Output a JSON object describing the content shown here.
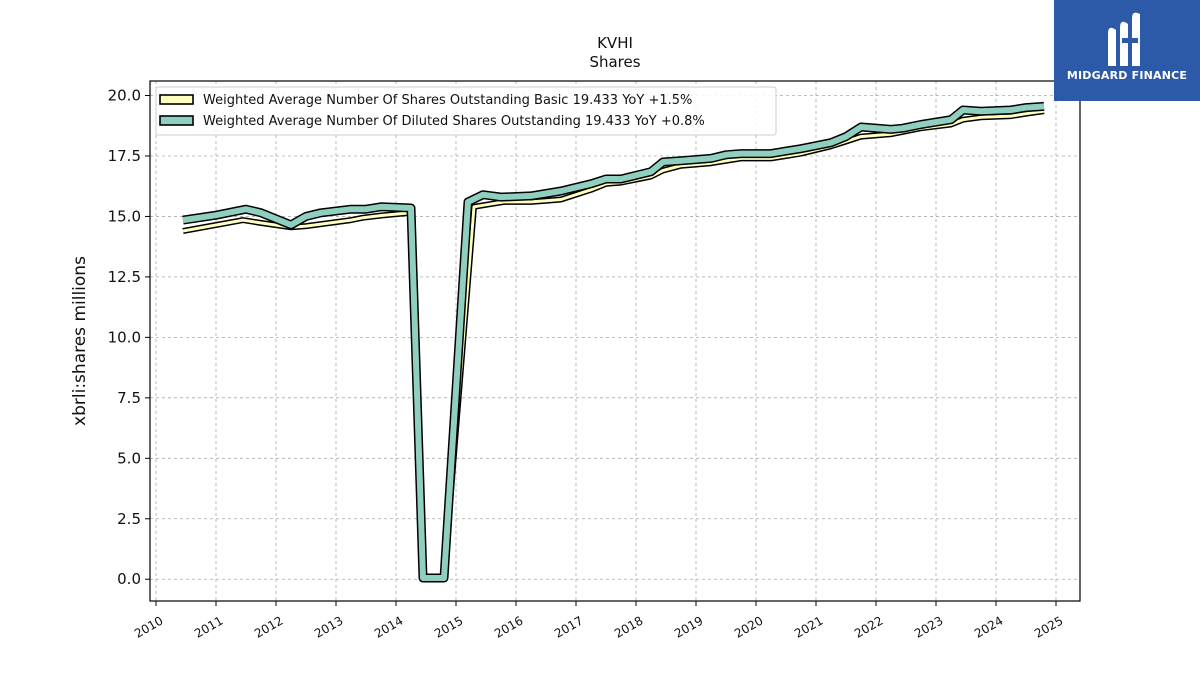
{
  "logo": {
    "name": "MIDGARD FINANCE",
    "icon": "midgard-monogram-icon",
    "bg_color": "#2c5aa8"
  },
  "chart_data": {
    "type": "line",
    "title": "KVHI",
    "subtitle": "Shares",
    "xlabel": "",
    "ylabel": "xbrli:shares millions",
    "xlim": [
      2009.9,
      2025.4
    ],
    "ylim": [
      -0.9,
      20.6
    ],
    "x_ticks": [
      "2010",
      "2011",
      "2012",
      "2013",
      "2014",
      "2015",
      "2016",
      "2017",
      "2018",
      "2019",
      "2020",
      "2021",
      "2022",
      "2023",
      "2024",
      "2025"
    ],
    "y_ticks": [
      "0.0",
      "2.5",
      "5.0",
      "7.5",
      "10.0",
      "12.5",
      "15.0",
      "17.5",
      "20.0"
    ],
    "grid": true,
    "legend_position": "upper-left",
    "series": [
      {
        "name": "Weighted Average Number Of Shares Outstanding Basic  19.433 YoY +1.5%",
        "color": "#ffffc0",
        "line_width": 3,
        "x": [
          2010.45,
          2011.45,
          2011.7,
          2012.25,
          2012.5,
          2013.25,
          2013.45,
          2013.8,
          2014.25,
          2014.45,
          2014.55,
          2014.7,
          2014.8,
          2015.3,
          2015.55,
          2015.8,
          2016.25,
          2016.5,
          2016.75,
          2017.25,
          2017.5,
          2017.75,
          2018.25,
          2018.45,
          2018.75,
          2019.25,
          2019.5,
          2019.75,
          2020.25,
          2020.5,
          2020.75,
          2021.25,
          2021.5,
          2021.75,
          2022.25,
          2022.45,
          2022.75,
          2023.25,
          2023.45,
          2023.75,
          2024.25,
          2024.5,
          2024.8
        ],
        "y": [
          14.4,
          14.85,
          14.75,
          14.55,
          14.6,
          14.85,
          14.95,
          15.05,
          15.15,
          0.05,
          0.05,
          0.05,
          0.05,
          15.4,
          15.5,
          15.6,
          15.6,
          15.65,
          15.7,
          16.1,
          16.35,
          16.4,
          16.65,
          16.9,
          17.1,
          17.2,
          17.3,
          17.4,
          17.4,
          17.5,
          17.6,
          17.9,
          18.1,
          18.3,
          18.4,
          18.5,
          18.65,
          18.8,
          19.0,
          19.1,
          19.15,
          19.25,
          19.35
        ]
      },
      {
        "name": "Weighted Average Number Of Diluted Shares Outstanding  19.433 YoY +0.8%",
        "color": "#8fcfc0",
        "line_width": 6,
        "x": [
          2010.45,
          2011.0,
          2011.5,
          2011.75,
          2012.25,
          2012.5,
          2012.75,
          2013.25,
          2013.5,
          2013.75,
          2014.25,
          2014.45,
          2014.55,
          2014.7,
          2014.8,
          2015.2,
          2015.45,
          2015.75,
          2016.25,
          2016.5,
          2016.75,
          2017.25,
          2017.5,
          2017.75,
          2018.25,
          2018.45,
          2018.75,
          2019.25,
          2019.5,
          2019.75,
          2020.25,
          2020.5,
          2020.75,
          2021.25,
          2021.5,
          2021.75,
          2022.25,
          2022.45,
          2022.75,
          2023.25,
          2023.45,
          2023.75,
          2024.25,
          2024.5,
          2024.8
        ],
        "y": [
          14.85,
          15.05,
          15.3,
          15.15,
          14.65,
          15.0,
          15.15,
          15.3,
          15.3,
          15.4,
          15.35,
          0.05,
          0.05,
          0.05,
          0.05,
          15.6,
          15.9,
          15.8,
          15.85,
          15.95,
          16.05,
          16.35,
          16.55,
          16.55,
          16.85,
          17.25,
          17.3,
          17.4,
          17.55,
          17.6,
          17.6,
          17.7,
          17.8,
          18.05,
          18.3,
          18.7,
          18.6,
          18.65,
          18.8,
          19.0,
          19.4,
          19.35,
          19.4,
          19.5,
          19.55
        ]
      }
    ]
  }
}
